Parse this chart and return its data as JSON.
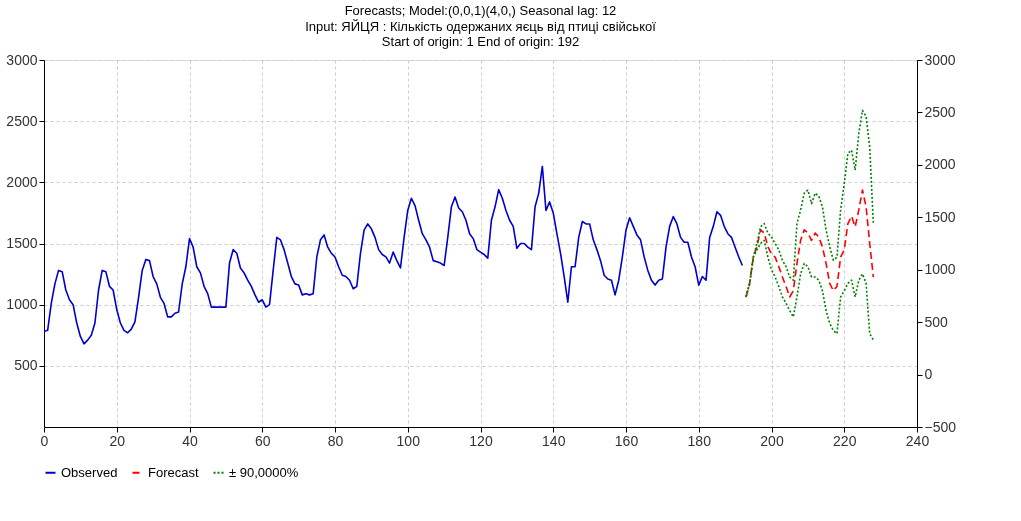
{
  "chart_data": {
    "type": "line",
    "title": "Forecasts; Model:(0,0,1)(4,0,) Seasonal lag: 12",
    "subtitle": "Input: ЯЙЦЯ    : Кількість одержаних яєць від птиці свійської\nStart of origin: 1        End of origin: 192",
    "xlim": [
      0,
      240
    ],
    "xticks": [
      0,
      20,
      40,
      60,
      80,
      100,
      120,
      140,
      160,
      180,
      200,
      220,
      240
    ],
    "ylim": [
      0,
      3000
    ],
    "yticks": [
      500,
      1000,
      1500,
      2000,
      2500,
      3000
    ],
    "y2lim": [
      -500,
      3000
    ],
    "y2ticks": [
      -500,
      0,
      500,
      1000,
      1500,
      2000,
      2500,
      3000
    ],
    "grid": true,
    "legend": "bottom",
    "marker": "none",
    "series": [
      {
        "name": "Observed",
        "color": "#0000cc",
        "line_style": "solid",
        "x": [
          0,
          1,
          2,
          3,
          4,
          5,
          6,
          7,
          8,
          9,
          10,
          11,
          12,
          13,
          14,
          15,
          16,
          17,
          18,
          19,
          20,
          21,
          22,
          23,
          24,
          25,
          26,
          27,
          28,
          29,
          30,
          31,
          32,
          33,
          34,
          35,
          36,
          37,
          38,
          39,
          40,
          41,
          42,
          43,
          44,
          45,
          46,
          47,
          48,
          49,
          50,
          51,
          52,
          53,
          54,
          55,
          56,
          57,
          58,
          59,
          60,
          61,
          62,
          63,
          64,
          65,
          66,
          67,
          68,
          69,
          70,
          71,
          72,
          73,
          74,
          75,
          76,
          77,
          78,
          79,
          80,
          81,
          82,
          83,
          84,
          85,
          86,
          87,
          88,
          89,
          90,
          91,
          92,
          93,
          94,
          95,
          96,
          97,
          98,
          99,
          100,
          101,
          102,
          103,
          104,
          105,
          106,
          107,
          108,
          109,
          110,
          111,
          112,
          113,
          114,
          115,
          116,
          117,
          118,
          119,
          120,
          121,
          122,
          123,
          124,
          125,
          126,
          127,
          128,
          129,
          130,
          131,
          132,
          133,
          134,
          135,
          136,
          137,
          138,
          139,
          140,
          141,
          142,
          143,
          144,
          145,
          146,
          147,
          148,
          149,
          150,
          151,
          152,
          153,
          154,
          155,
          156,
          157,
          158,
          159,
          160,
          161,
          162,
          163,
          164,
          165,
          166,
          167,
          168,
          169,
          170,
          171,
          172,
          173,
          174,
          175,
          176,
          177,
          178,
          179,
          180,
          181,
          182,
          183,
          184,
          185,
          186,
          187,
          188,
          189,
          190,
          191,
          192
        ],
        "values": [
          780,
          790,
          1010,
          1170,
          1280,
          1270,
          1120,
          1040,
          1000,
          850,
          740,
          680,
          710,
          750,
          850,
          1120,
          1280,
          1270,
          1150,
          1120,
          960,
          850,
          790,
          770,
          800,
          860,
          1060,
          1280,
          1370,
          1360,
          1230,
          1170,
          1060,
          1010,
          900,
          900,
          930,
          940,
          1170,
          1310,
          1540,
          1470,
          1310,
          1260,
          1150,
          1090,
          980,
          980,
          980,
          980,
          980,
          1340,
          1450,
          1420,
          1300,
          1260,
          1200,
          1150,
          1080,
          1020,
          1040,
          980,
          1000,
          1280,
          1550,
          1530,
          1450,
          1340,
          1230,
          1170,
          1160,
          1080,
          1090,
          1080,
          1090,
          1390,
          1530,
          1570,
          1470,
          1420,
          1390,
          1310,
          1240,
          1230,
          1200,
          1130,
          1150,
          1420,
          1610,
          1660,
          1620,
          1550,
          1450,
          1410,
          1390,
          1340,
          1430,
          1360,
          1300,
          1550,
          1770,
          1870,
          1810,
          1690,
          1580,
          1530,
          1470,
          1360,
          1350,
          1340,
          1320,
          1550,
          1800,
          1880,
          1790,
          1760,
          1690,
          1580,
          1540,
          1450,
          1430,
          1410,
          1380,
          1690,
          1800,
          1940,
          1870,
          1770,
          1690,
          1640,
          1460,
          1500,
          1500,
          1470,
          1450,
          1800,
          1910,
          2130,
          1770,
          1840,
          1750,
          1580,
          1420,
          1230,
          1020,
          1310,
          1310,
          1550,
          1680,
          1660,
          1660,
          1530,
          1450,
          1360,
          1240,
          1210,
          1200,
          1080,
          1200,
          1390,
          1610,
          1710,
          1640,
          1570,
          1530,
          1390,
          1280,
          1200,
          1160,
          1200,
          1210,
          1470,
          1640,
          1720,
          1660,
          1550,
          1510,
          1510,
          1390,
          1310,
          1160,
          1230,
          1200,
          1550,
          1640,
          1760,
          1730,
          1640,
          1580,
          1550,
          1470,
          1390,
          1320
        ]
      },
      {
        "name": "Forecast",
        "color": "#ff0000",
        "line_style": "dashed",
        "axis": "y2",
        "x": [
          193,
          194,
          195,
          196,
          197,
          198,
          199,
          200,
          201,
          202,
          203,
          204,
          205,
          206,
          207,
          208,
          209,
          210,
          211,
          212,
          213,
          214,
          215,
          216,
          217,
          218,
          219,
          220,
          221,
          222,
          223,
          224,
          225,
          226,
          227,
          228
        ],
        "values": [
          740,
          870,
          1120,
          1220,
          1380,
          1350,
          1220,
          1150,
          1120,
          1030,
          930,
          840,
          740,
          800,
          1060,
          1280,
          1380,
          1350,
          1280,
          1350,
          1310,
          1220,
          1060,
          870,
          800,
          840,
          1120,
          1190,
          1440,
          1510,
          1410,
          1570,
          1760,
          1600,
          1250,
          930
        ]
      },
      {
        "name": "± 90,0000%",
        "color": "#008000",
        "line_style": "dotted",
        "axis": "y2",
        "x": [
          193,
          194,
          195,
          196,
          197,
          198,
          199,
          200,
          201,
          202,
          203,
          204,
          205,
          206,
          207,
          208,
          209,
          210,
          211,
          212,
          213,
          214,
          215,
          216,
          217,
          218,
          219,
          220,
          221,
          222,
          223,
          224,
          225,
          226,
          227,
          228
        ],
        "values": [
          740,
          870,
          1120,
          1250,
          1410,
          1440,
          1350,
          1310,
          1250,
          1190,
          1090,
          1030,
          930,
          900,
          1440,
          1570,
          1730,
          1760,
          1630,
          1730,
          1700,
          1600,
          1380,
          1220,
          1090,
          1120,
          1570,
          1820,
          2110,
          2140,
          1950,
          2300,
          2520,
          2460,
          2170,
          1440
        ]
      },
      {
        "color": "#008000",
        "line_style": "dotted",
        "axis": "y2",
        "x": [
          193,
          194,
          195,
          196,
          197,
          198,
          199,
          200,
          201,
          202,
          203,
          204,
          205,
          206,
          207,
          208,
          209,
          210,
          211,
          212,
          213,
          214,
          215,
          216,
          217,
          218,
          219,
          220,
          221,
          222,
          223,
          224,
          225,
          226,
          227,
          228
        ],
        "values": [
          740,
          870,
          1120,
          1190,
          1250,
          1280,
          1120,
          1000,
          930,
          840,
          740,
          680,
          610,
          550,
          740,
          960,
          1060,
          1030,
          930,
          930,
          900,
          800,
          610,
          490,
          420,
          390,
          740,
          800,
          870,
          900,
          740,
          900,
          960,
          870,
          390,
          330
        ]
      }
    ]
  }
}
